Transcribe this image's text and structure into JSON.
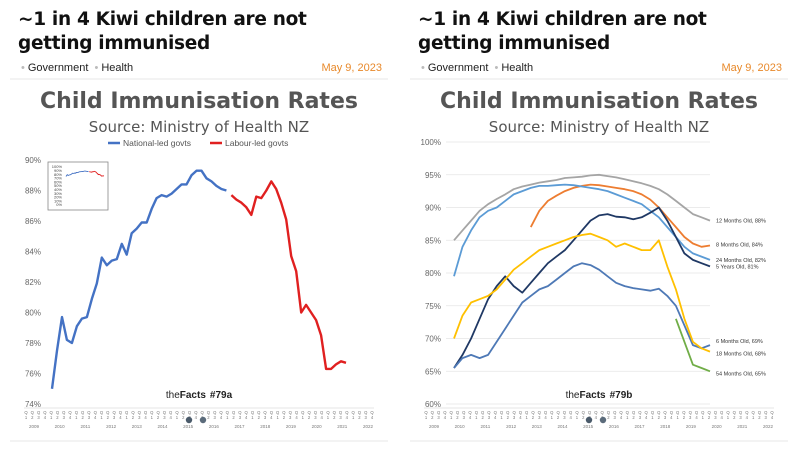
{
  "article_a": {
    "headline": "~1 in 4 Kiwi children are not getting immunised",
    "tags": [
      "Government",
      "Health"
    ],
    "date": "May 9, 2023"
  },
  "article_b": {
    "headline": "~1 in 4 Kiwi children are not getting immunised",
    "tags": [
      "Government",
      "Health"
    ],
    "date": "May 9, 2023"
  },
  "colors": {
    "national": "#4472c4",
    "labour": "#e02020",
    "date_accent": "#e8892b"
  },
  "chart_data": [
    {
      "type": "line",
      "title": "Child Immunisation Rates",
      "subtitle": "Source: Ministry of Health NZ",
      "ylim": [
        74,
        90
      ],
      "yticks": [
        "90%",
        "88%",
        "86%",
        "84%",
        "82%",
        "80%",
        "78%",
        "76%",
        "74%"
      ],
      "ytick_values": [
        90,
        88,
        86,
        84,
        82,
        80,
        78,
        76,
        74
      ],
      "x_year_labels": [
        "2009",
        "2010",
        "2011",
        "2012",
        "2013",
        "2014",
        "2015",
        "2016",
        "2017",
        "2018",
        "2019",
        "2020",
        "2021",
        "2022"
      ],
      "legend_position": "top",
      "badge": {
        "prefix": "the",
        "brand": "Facts",
        "code": "#79a"
      },
      "inset": {
        "yticks": [
          "100%",
          "90%",
          "80%",
          "70%",
          "60%",
          "50%",
          "40%",
          "30%",
          "20%",
          "10%",
          "0%"
        ],
        "ylim": [
          0,
          100
        ]
      },
      "series": [
        {
          "name": "National-led govts",
          "color": "#4472c4",
          "x": [
            0,
            1,
            2,
            3,
            4,
            5,
            6,
            7,
            8,
            9,
            10,
            11,
            12,
            13,
            14,
            15,
            16,
            17,
            18,
            19,
            20,
            21,
            22,
            23,
            24,
            25,
            26,
            27,
            28,
            29,
            30,
            31,
            32,
            33,
            34,
            35
          ],
          "values": [
            75.0,
            77.5,
            79.7,
            78.2,
            78.0,
            79.1,
            79.6,
            79.7,
            80.9,
            81.9,
            83.6,
            83.1,
            83.4,
            83.5,
            84.5,
            83.8,
            85.2,
            85.5,
            85.9,
            85.9,
            86.8,
            87.5,
            87.7,
            87.6,
            87.8,
            88.1,
            88.4,
            88.4,
            89.0,
            89.3,
            89.3,
            88.8,
            88.6,
            88.3,
            88.1,
            88.0
          ]
        },
        {
          "name": "Labour-led govts",
          "color": "#e02020",
          "x": [
            36,
            37,
            38,
            39,
            40,
            41,
            42,
            43,
            44,
            45,
            46,
            47,
            48,
            49,
            50,
            51,
            52,
            53,
            54,
            55,
            56,
            57,
            58,
            59
          ],
          "values": [
            87.7,
            87.4,
            87.2,
            86.9,
            86.4,
            87.6,
            87.5,
            88.0,
            88.6,
            88.1,
            87.2,
            86.1,
            83.7,
            82.7,
            80.0,
            80.5,
            80.0,
            79.5,
            78.5,
            76.3,
            76.3,
            76.6,
            76.8,
            76.7
          ]
        }
      ]
    },
    {
      "type": "line",
      "title": "Child Immunisation Rates",
      "subtitle": "Source: Ministry of Health NZ",
      "ylim": [
        60,
        100
      ],
      "yticks": [
        "100%",
        "95%",
        "90%",
        "85%",
        "80%",
        "75%",
        "70%",
        "65%",
        "60%"
      ],
      "ytick_values": [
        100,
        95,
        90,
        85,
        80,
        75,
        70,
        65,
        60
      ],
      "x_year_labels": [
        "2009",
        "2010",
        "2011",
        "2012",
        "2013",
        "2014",
        "2015",
        "2016",
        "2017",
        "2018",
        "2019",
        "2020",
        "2021",
        "2022"
      ],
      "badge": {
        "prefix": "the",
        "brand": "Facts",
        "code": "#79b"
      },
      "series": [
        {
          "name": "12 Months Old, 88%",
          "color": "#a5a5a5",
          "values": [
            85,
            86.5,
            88,
            89.5,
            90.5,
            91.3,
            92,
            92.8,
            93.2,
            93.5,
            93.8,
            94,
            94.2,
            94.5,
            94.6,
            94.7,
            94.9,
            95,
            94.8,
            94.6,
            94.3,
            94,
            93.7,
            93.3,
            92.8,
            92,
            91,
            90,
            89,
            88.5,
            88
          ]
        },
        {
          "name": "8 Months Old, 84%",
          "color": "#ed7d31",
          "values": [
            null,
            null,
            null,
            null,
            null,
            null,
            null,
            null,
            null,
            87,
            89.5,
            91,
            91.8,
            92.5,
            93,
            93.3,
            93.5,
            93.4,
            93.2,
            93,
            92.8,
            92.5,
            92,
            91.2,
            90,
            88.5,
            87,
            85.5,
            84.5,
            84,
            84.2
          ]
        },
        {
          "name": "24 Months Old, 82%",
          "color": "#5b9bd5",
          "values": [
            79.5,
            84,
            86.5,
            88.5,
            89.5,
            90,
            91,
            92,
            92.5,
            93,
            93.3,
            93.3,
            93.4,
            93.5,
            93.4,
            93.2,
            93,
            92.8,
            92.5,
            92,
            91.5,
            91,
            90.5,
            89.5,
            88.5,
            87,
            85.5,
            84,
            83,
            82.5,
            82
          ]
        },
        {
          "name": "5 Years Old, 81%",
          "color": "#1f3864",
          "values": [
            65.5,
            67.5,
            70,
            73,
            76,
            78,
            79.5,
            78,
            77,
            78.5,
            80,
            81.5,
            82.5,
            83.5,
            85,
            86.5,
            88,
            88.8,
            89,
            88.6,
            88.5,
            88.2,
            88.5,
            89.2,
            90,
            88,
            85.5,
            83,
            82,
            81.5,
            81
          ]
        },
        {
          "name": "6 Months Old, 69%",
          "color": "#4e79b6",
          "values": [
            65.5,
            67,
            67.5,
            67,
            67.5,
            69.5,
            71.5,
            73.5,
            75.5,
            76.5,
            77.5,
            78,
            79,
            80,
            81,
            81.5,
            81.2,
            80.5,
            79.5,
            78.5,
            78,
            77.7,
            77.5,
            77.3,
            77.6,
            76.5,
            75,
            72,
            69,
            68.5,
            69
          ]
        },
        {
          "name": "18 Months Old, 68%",
          "color": "#ffc000",
          "values": [
            70,
            73.5,
            75.5,
            76,
            76.5,
            77.5,
            79,
            80.5,
            81.5,
            82.5,
            83.5,
            84,
            84.5,
            85,
            85.5,
            85.8,
            86,
            85.5,
            85,
            84,
            84.5,
            84,
            83.5,
            83.5,
            85,
            81,
            77.5,
            73,
            69.5,
            68.5,
            68
          ]
        },
        {
          "name": "54 Months Old, 65%",
          "color": "#70ad47",
          "values": [
            null,
            null,
            null,
            null,
            null,
            null,
            null,
            null,
            null,
            null,
            null,
            null,
            null,
            null,
            null,
            null,
            null,
            null,
            null,
            null,
            null,
            null,
            null,
            null,
            null,
            null,
            73,
            69.5,
            66,
            65.5,
            65
          ]
        }
      ]
    }
  ]
}
